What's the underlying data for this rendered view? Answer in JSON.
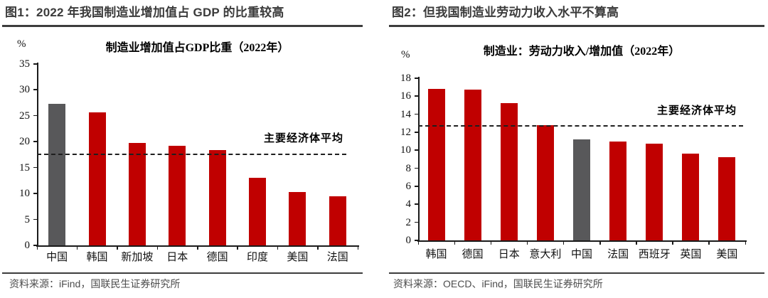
{
  "chart_data": [
    {
      "type": "bar",
      "figure_label": "图1：2022 年我国制造业增加值占 GDP 的比重较高",
      "title": "制造业增加值占GDP比重（2022年）",
      "ylabel": "%",
      "xlabel": "",
      "categories": [
        "中国",
        "韩国",
        "新加坡",
        "日本",
        "德国",
        "印度",
        "美国",
        "法国"
      ],
      "values": [
        27.3,
        25.6,
        19.8,
        19.2,
        18.4,
        13.1,
        10.3,
        9.5
      ],
      "ylim": [
        0,
        35
      ],
      "ytick_step": 5,
      "grid": false,
      "legend": "none",
      "average_line": {
        "value": 17.5,
        "label": "主要经济体平均"
      },
      "highlight_category": "中国",
      "colors": {
        "bar": "#c00000",
        "highlight": "#58585a"
      },
      "source": "资料来源：iFind，国联民生证券研究所"
    },
    {
      "type": "bar",
      "figure_label": "图2：但我国制造业劳动力收入水平不算高",
      "title": "制造业：劳动力收入/增加值（2022年）",
      "ylabel": "%",
      "xlabel": "",
      "categories": [
        "韩国",
        "德国",
        "日本",
        "意大利",
        "中国",
        "法国",
        "西班牙",
        "英国",
        "美国"
      ],
      "values": [
        16.8,
        16.7,
        15.2,
        12.8,
        11.2,
        11.0,
        10.7,
        9.6,
        9.2
      ],
      "ylim": [
        0,
        18
      ],
      "ytick_step": 2,
      "grid": false,
      "legend": "none",
      "average_line": {
        "value": 12.6,
        "label": "主要经济体平均"
      },
      "highlight_category": "中国",
      "colors": {
        "bar": "#c00000",
        "highlight": "#58585a"
      },
      "source": "资料来源：OECD、iFind，国联民生证券研究所"
    }
  ]
}
